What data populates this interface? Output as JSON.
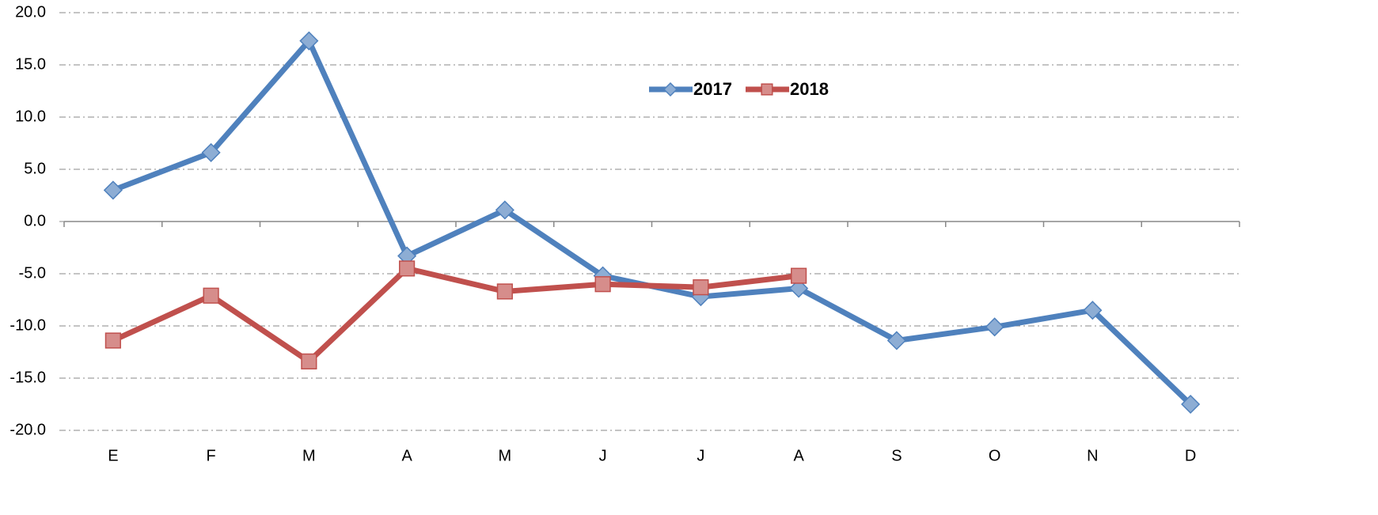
{
  "chart_data": {
    "type": "line",
    "categories": [
      "E",
      "F",
      "M",
      "A",
      "M",
      "J",
      "J",
      "A",
      "S",
      "O",
      "N",
      "D"
    ],
    "series": [
      {
        "name": "2017",
        "color": "#4f81bd",
        "marker": "diamond",
        "values": [
          3.0,
          6.6,
          17.3,
          -3.3,
          1.1,
          -5.2,
          -7.2,
          -6.4,
          -11.4,
          -10.1,
          -8.5,
          -17.5
        ]
      },
      {
        "name": "2018",
        "color": "#c0504d",
        "marker": "square",
        "values": [
          -11.4,
          -7.1,
          -13.4,
          -4.5,
          -6.7,
          -6.0,
          -6.3,
          -5.2,
          null,
          null,
          null,
          null
        ]
      }
    ],
    "ylim": [
      -20,
      20
    ],
    "yticks": [
      {
        "value": -20,
        "label": "-20.0"
      },
      {
        "value": -15,
        "label": "-15.0"
      },
      {
        "value": -10,
        "label": "-10.0"
      },
      {
        "value": -5,
        "label": "-5.0"
      },
      {
        "value": 0,
        "label": "0.0"
      },
      {
        "value": 5,
        "label": "5.0"
      },
      {
        "value": 10,
        "label": "10.0"
      },
      {
        "value": 15,
        "label": "15.0"
      },
      {
        "value": 20,
        "label": "20.0"
      }
    ],
    "grid": true,
    "legend": "top"
  }
}
